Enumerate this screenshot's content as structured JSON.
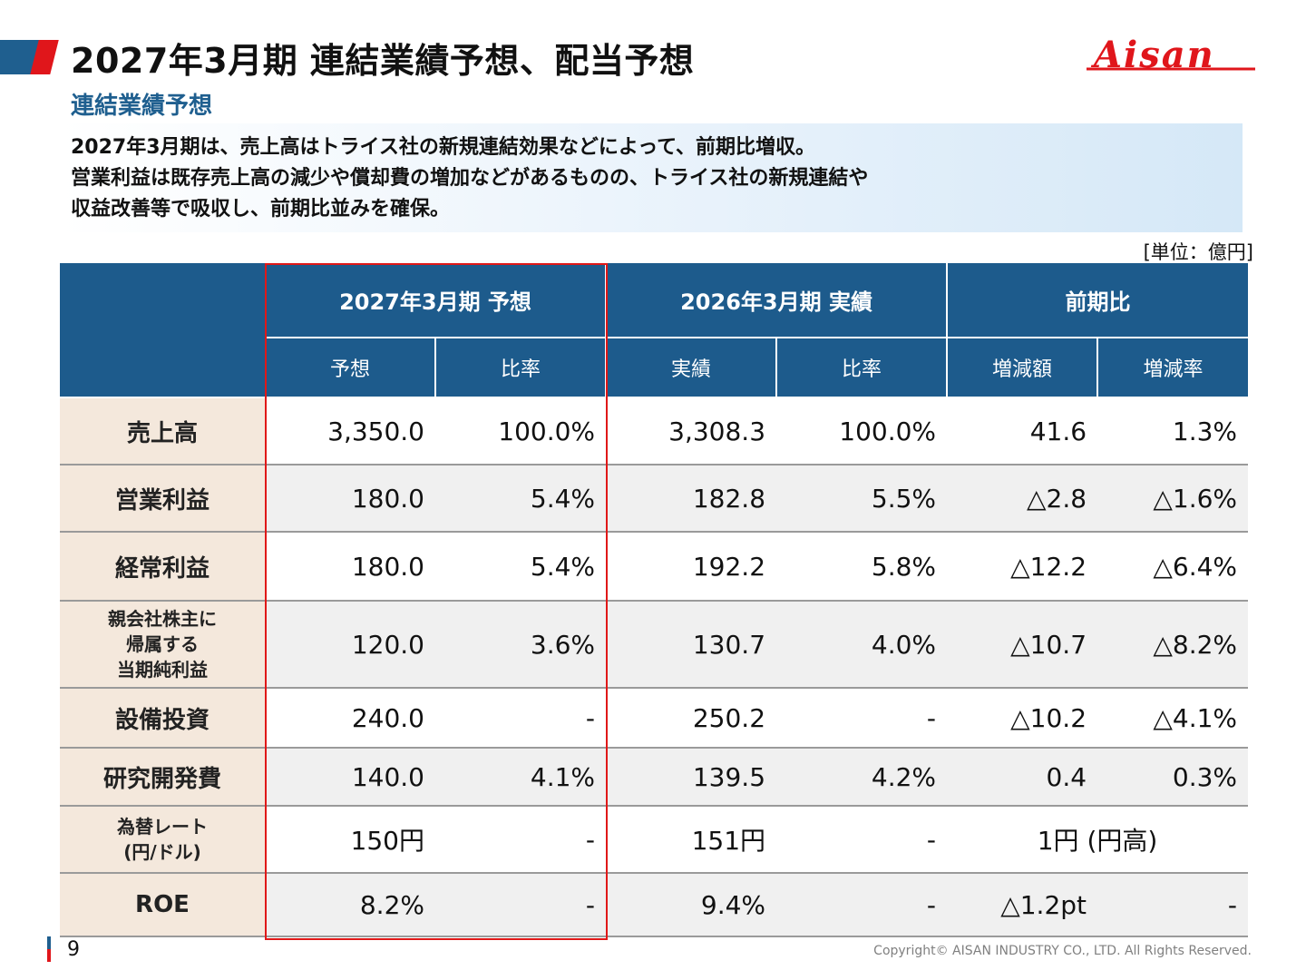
{
  "header": {
    "title": "2027年3月期 連結業績予想、配当予想",
    "logo_text": "Aisan"
  },
  "section": {
    "title": "連結業績予想"
  },
  "summary": {
    "lines": [
      "2027年3月期は、売上高はトライス社の新規連結効果などによって、前期比増収。",
      "営業利益は既存売上高の減少や償却費の増加などがあるものの、トライス社の新規連結や",
      "収益改善等で吸収し、前期比並みを確保。"
    ]
  },
  "unit_note": "[単位：億円]",
  "table": {
    "groups": [
      "2027年3月期 予想",
      "2026年3月期 実績",
      "前期比"
    ],
    "subheaders": [
      "予想",
      "比率",
      "実績",
      "比率",
      "増減額",
      "増減率"
    ],
    "rows": [
      {
        "label": [
          "売上高"
        ],
        "values": [
          "3,350.0",
          "100.0%",
          "3,308.3",
          "100.0%",
          "41.6",
          "1.3%"
        ]
      },
      {
        "label": [
          "営業利益"
        ],
        "values": [
          "180.0",
          "5.4%",
          "182.8",
          "5.5%",
          "△2.8",
          "△1.6%"
        ]
      },
      {
        "label": [
          "経常利益"
        ],
        "values": [
          "180.0",
          "5.4%",
          "192.2",
          "5.8%",
          "△12.2",
          "△6.4%"
        ]
      },
      {
        "label": [
          "親会社株主に",
          "帰属する",
          "当期純利益"
        ],
        "values": [
          "120.0",
          "3.6%",
          "130.7",
          "4.0%",
          "△10.7",
          "△8.2%"
        ]
      },
      {
        "label": [
          "設備投資"
        ],
        "values": [
          "240.0",
          "-",
          "250.2",
          "-",
          "△10.2",
          "△4.1%"
        ]
      },
      {
        "label": [
          "研究開発費"
        ],
        "values": [
          "140.0",
          "4.1%",
          "139.5",
          "4.2%",
          "0.4",
          "0.3%"
        ]
      },
      {
        "label": [
          "為替レート",
          "(円/ドル)"
        ],
        "values": [
          "150円",
          "-",
          "151円",
          "-",
          "1円 (円高)"
        ]
      },
      {
        "label": [
          "ROE"
        ],
        "values": [
          "8.2%",
          "-",
          "9.4%",
          "-",
          "△1.2pt",
          "-"
        ]
      }
    ]
  },
  "footer": {
    "page_number": "9",
    "copyright": "Copyright© AISAN INDUSTRY CO., LTD. All Rights Reserved."
  },
  "colors": {
    "brand_blue": "#1d5b8c",
    "accent_red": "#e0161b",
    "label_bg": "#f4e8dc"
  }
}
